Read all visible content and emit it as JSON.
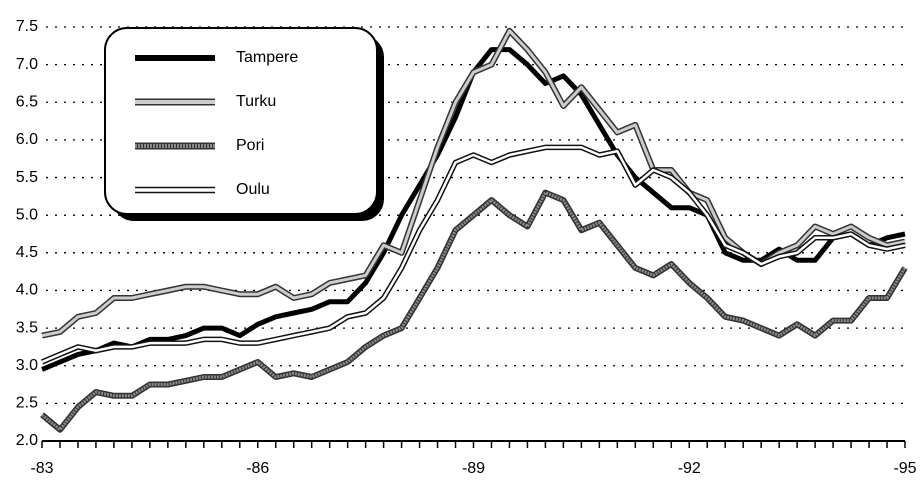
{
  "chart_data": {
    "type": "line",
    "categories": [
      "-83",
      null,
      null,
      null,
      null,
      null,
      null,
      null,
      null,
      null,
      null,
      null,
      "-86",
      null,
      null,
      null,
      null,
      null,
      null,
      null,
      null,
      null,
      null,
      null,
      "-89",
      null,
      null,
      null,
      null,
      null,
      null,
      null,
      null,
      null,
      null,
      null,
      "-92",
      null,
      null,
      null,
      null,
      null,
      null,
      null,
      null,
      null,
      null,
      null,
      "-95"
    ],
    "series": [
      {
        "name": "Tampere",
        "color": "#000000",
        "values": [
          2.95,
          3.05,
          3.15,
          3.2,
          3.3,
          3.25,
          3.35,
          3.35,
          3.4,
          3.5,
          3.5,
          3.4,
          3.55,
          3.65,
          3.7,
          3.75,
          3.85,
          3.85,
          4.1,
          4.5,
          5.0,
          5.4,
          5.8,
          6.3,
          6.9,
          7.2,
          7.2,
          7.0,
          6.75,
          6.85,
          6.6,
          6.2,
          5.8,
          5.5,
          5.3,
          5.1,
          5.1,
          5.0,
          4.5,
          4.4,
          4.4,
          4.55,
          4.4,
          4.4,
          4.7,
          4.75,
          4.6,
          4.7,
          4.75
        ]
      },
      {
        "name": "Turku",
        "color": "#cccccc",
        "values": [
          3.4,
          3.45,
          3.65,
          3.7,
          3.9,
          3.9,
          3.95,
          4.0,
          4.05,
          4.05,
          4.0,
          3.95,
          3.95,
          4.05,
          3.9,
          3.95,
          4.1,
          4.15,
          4.2,
          4.6,
          4.5,
          5.2,
          5.9,
          6.5,
          6.9,
          7.0,
          7.45,
          7.2,
          6.9,
          6.45,
          6.7,
          6.4,
          6.1,
          6.2,
          5.6,
          5.6,
          5.3,
          5.2,
          4.7,
          4.5,
          4.35,
          4.5,
          4.6,
          4.85,
          4.75,
          4.85,
          4.7,
          4.6,
          4.65
        ]
      },
      {
        "name": "Pori",
        "color": "#8a8a8a",
        "values": [
          2.35,
          2.15,
          2.45,
          2.65,
          2.6,
          2.6,
          2.75,
          2.75,
          2.8,
          2.85,
          2.85,
          2.95,
          3.05,
          2.85,
          2.9,
          2.85,
          2.95,
          3.05,
          3.25,
          3.4,
          3.5,
          3.9,
          4.3,
          4.8,
          5.0,
          5.2,
          5.0,
          4.85,
          5.3,
          5.2,
          4.8,
          4.9,
          4.6,
          4.3,
          4.2,
          4.35,
          4.1,
          3.9,
          3.65,
          3.6,
          3.5,
          3.4,
          3.55,
          3.4,
          3.6,
          3.6,
          3.9,
          3.9,
          4.3
        ]
      },
      {
        "name": "Oulu",
        "color": "#ffffff",
        "values": [
          3.05,
          3.15,
          3.25,
          3.2,
          3.25,
          3.25,
          3.3,
          3.3,
          3.3,
          3.35,
          3.35,
          3.3,
          3.3,
          3.35,
          3.4,
          3.45,
          3.5,
          3.65,
          3.7,
          3.9,
          4.3,
          4.8,
          5.2,
          5.7,
          5.8,
          5.7,
          5.8,
          5.85,
          5.9,
          5.9,
          5.9,
          5.8,
          5.85,
          5.4,
          5.6,
          5.5,
          5.3,
          5.0,
          4.6,
          4.5,
          4.35,
          4.45,
          4.5,
          4.7,
          4.7,
          4.75,
          4.6,
          4.55,
          4.6
        ]
      }
    ],
    "ylim": [
      2,
      7.5
    ],
    "yticks": [
      {
        "value": 2,
        "label": "2.0"
      },
      {
        "value": 2.5,
        "label": "2.5"
      },
      {
        "value": 3,
        "label": "3.0"
      },
      {
        "value": 3.5,
        "label": "3.5"
      },
      {
        "value": 4,
        "label": "4.0"
      },
      {
        "value": 4.5,
        "label": "4.5"
      },
      {
        "value": 5,
        "label": "5.0"
      },
      {
        "value": 5.5,
        "label": "5.5"
      },
      {
        "value": 6,
        "label": "6.0"
      },
      {
        "value": 6.5,
        "label": "6.5"
      },
      {
        "value": 7,
        "label": "7.0"
      },
      {
        "value": 7.5,
        "label": "7.5"
      }
    ],
    "grid": true,
    "legend": "upper left"
  }
}
